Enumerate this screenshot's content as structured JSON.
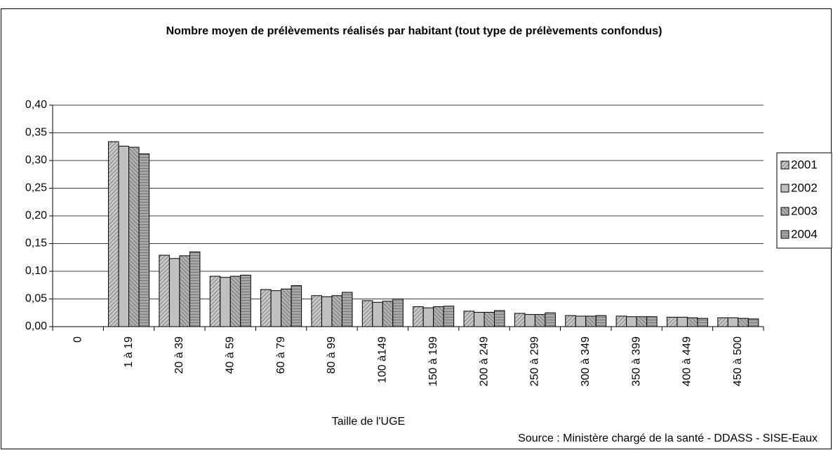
{
  "chart_data": {
    "type": "bar",
    "title": "Nombre moyen de prélèvements réalisés par habitant (tout type de prélèvements confondus)",
    "x_label": "Taille de l'UGE",
    "source": "Source : Ministère chargé de la santé - DDASS - SISE-Eaux",
    "categories": [
      "0",
      "1 à 19",
      "20 à 39",
      "40 à 59",
      "60 à 79",
      "80 à 99",
      "100 à149",
      "150 à 199",
      "200 à 249",
      "250 à 299",
      "300 à 349",
      "350 à 399",
      "400 à 449",
      "450 à 500"
    ],
    "series": [
      {
        "name": "2001",
        "color": "#c8c8c8",
        "values": [
          null,
          0.334,
          0.129,
          0.091,
          0.067,
          0.056,
          0.047,
          0.036,
          0.028,
          0.024,
          0.02,
          0.019,
          0.017,
          0.016
        ]
      },
      {
        "name": "2002",
        "color": "#c0c0c0",
        "values": [
          null,
          0.326,
          0.123,
          0.089,
          0.065,
          0.054,
          0.044,
          0.034,
          0.026,
          0.022,
          0.019,
          0.018,
          0.017,
          0.016
        ]
      },
      {
        "name": "2003",
        "color": "#b0b0b0",
        "values": [
          null,
          0.324,
          0.128,
          0.091,
          0.068,
          0.056,
          0.046,
          0.036,
          0.026,
          0.022,
          0.019,
          0.018,
          0.016,
          0.015
        ]
      },
      {
        "name": "2004",
        "color": "#a8a8a8",
        "values": [
          null,
          0.312,
          0.135,
          0.093,
          0.074,
          0.062,
          0.05,
          0.037,
          0.029,
          0.025,
          0.02,
          0.018,
          0.015,
          0.014
        ]
      }
    ],
    "ylim": [
      0,
      0.4
    ],
    "yticks": [
      {
        "value": 0,
        "label": "0,00"
      },
      {
        "value": 0.05,
        "label": "0,05"
      },
      {
        "value": 0.1,
        "label": "0,10"
      },
      {
        "value": 0.15,
        "label": "0,15"
      },
      {
        "value": 0.2,
        "label": "0,20"
      },
      {
        "value": 0.25,
        "label": "0,25"
      },
      {
        "value": 0.3,
        "label": "0,30"
      },
      {
        "value": 0.35,
        "label": "0,35"
      },
      {
        "value": 0.4,
        "label": "0,40"
      }
    ],
    "grid": true,
    "legend": "right"
  }
}
